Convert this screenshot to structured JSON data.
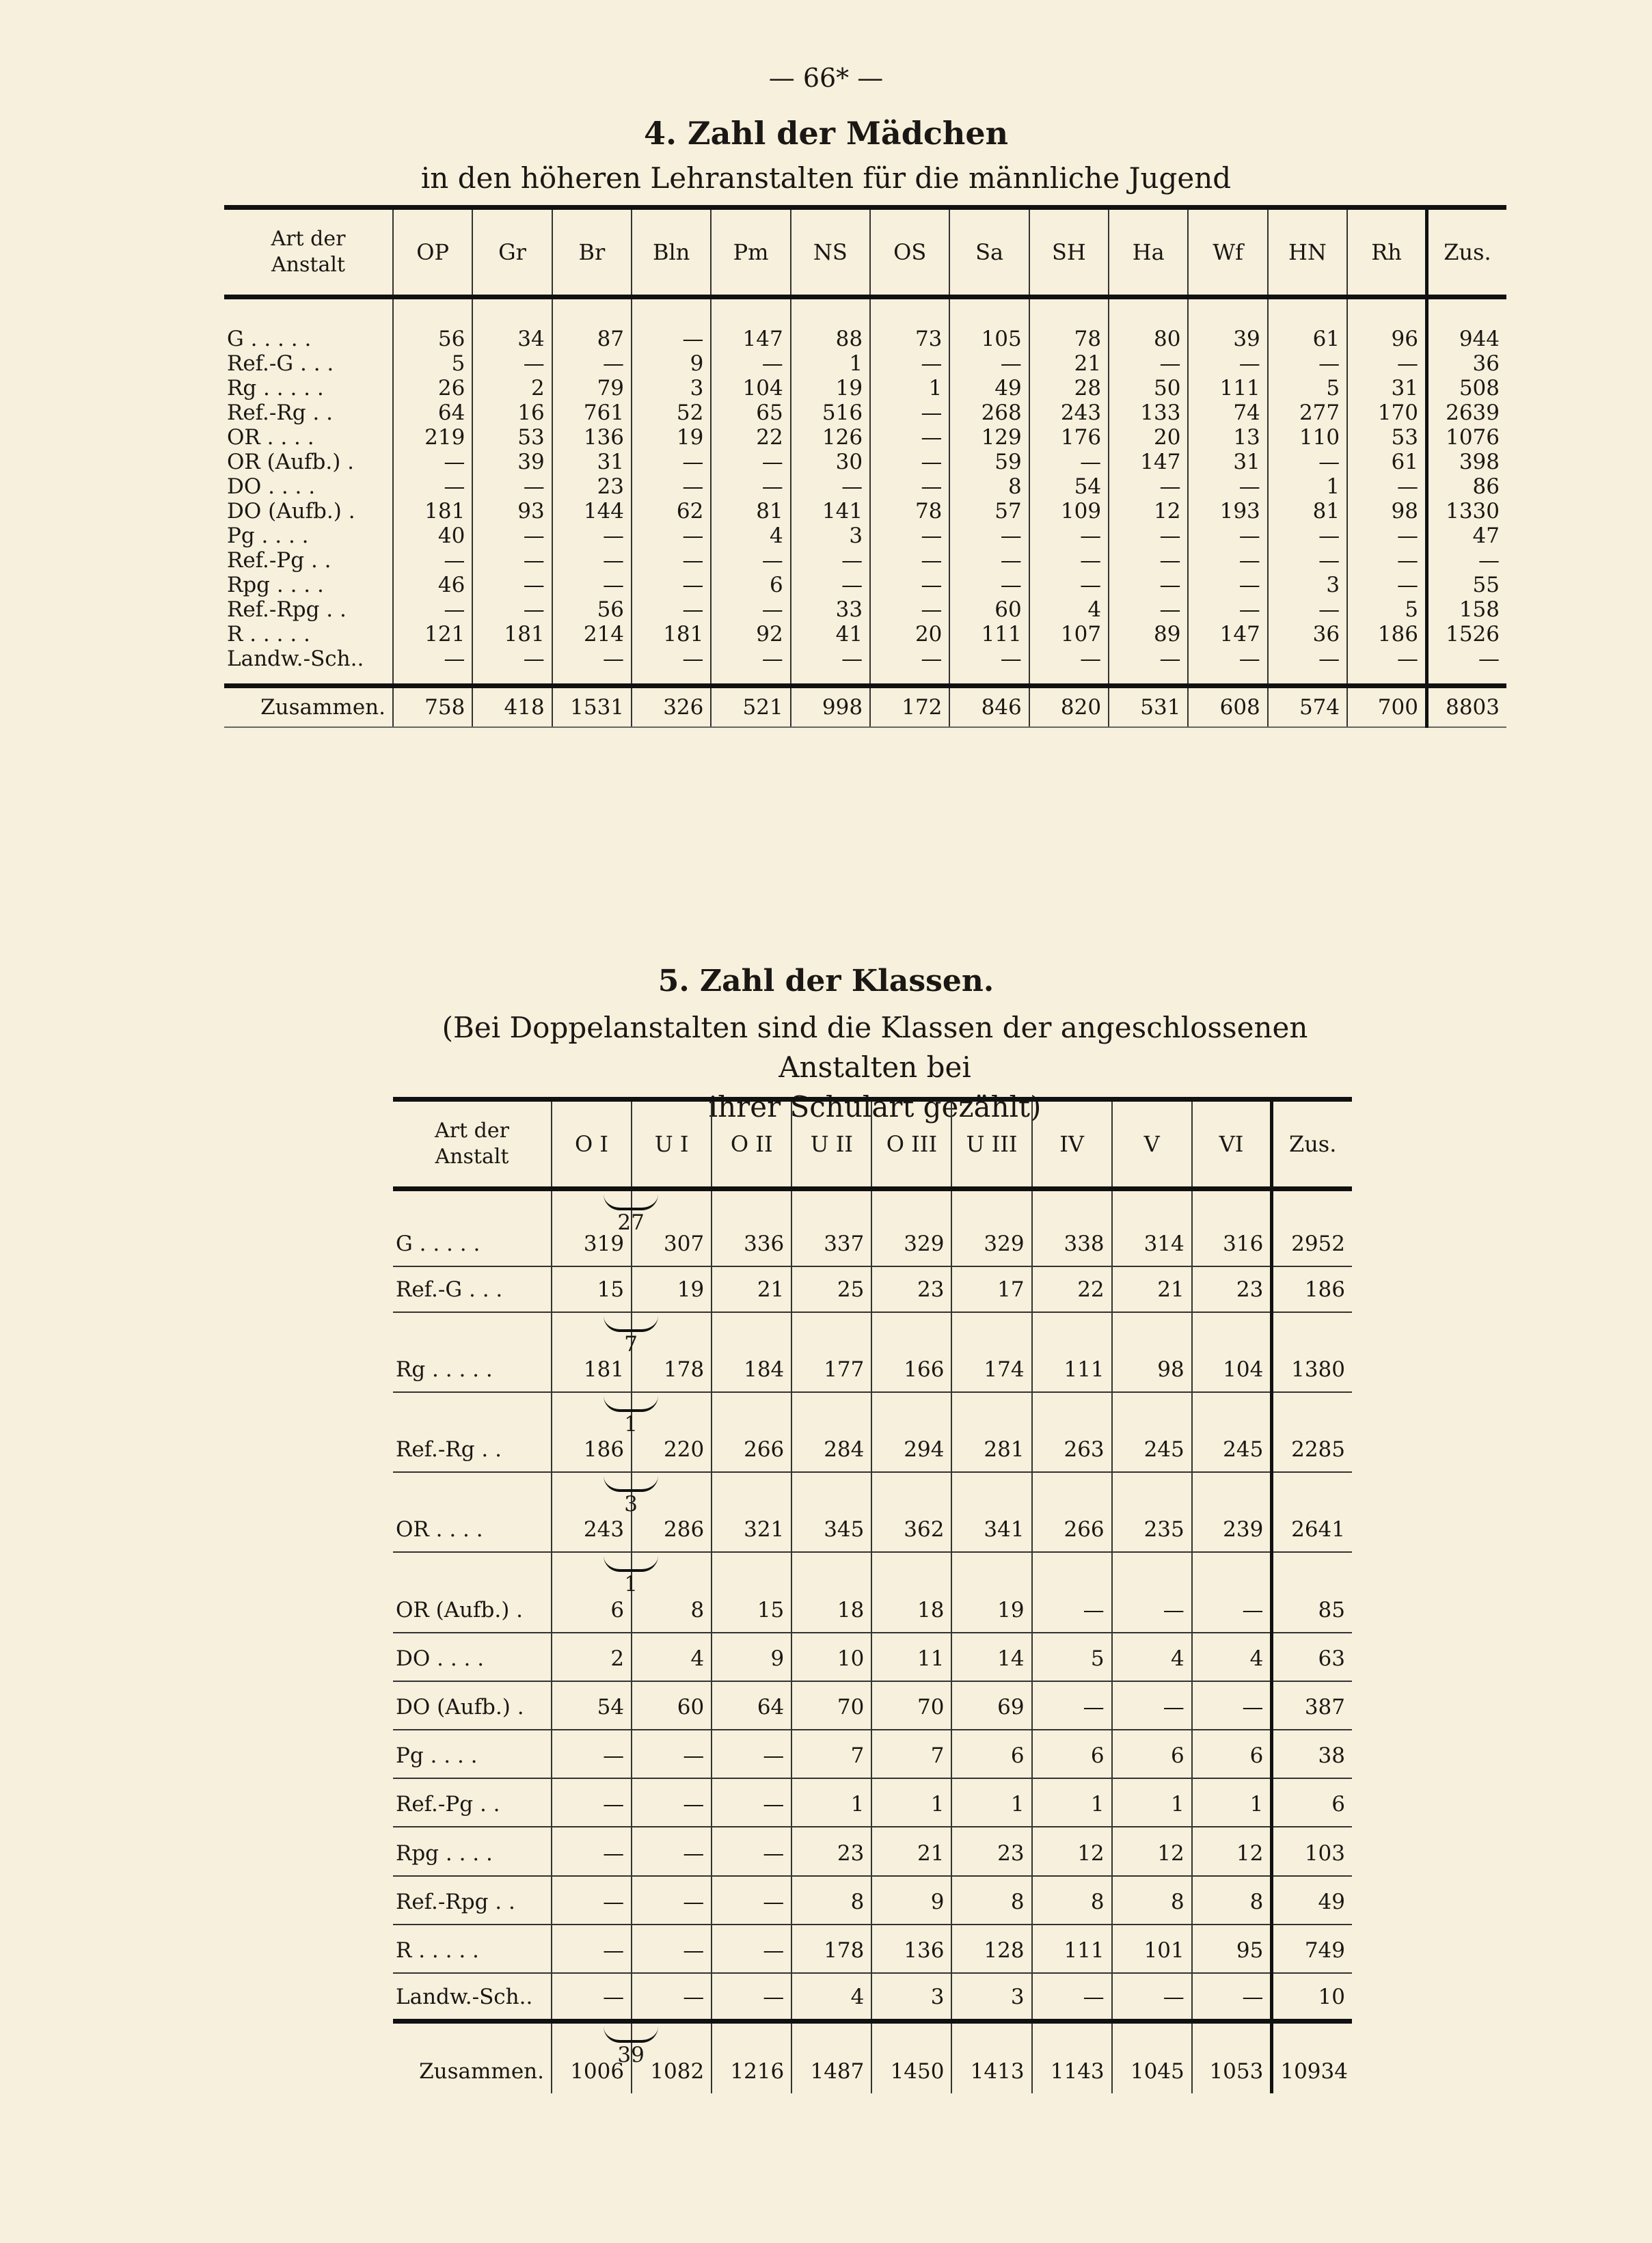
{
  "page_number": "— 66* —",
  "table4": {
    "title": "4. Zahl der Mädchen",
    "subtitle": "in den höheren Lehranstalten für die männliche Jugend",
    "row_header": [
      "Art der",
      "Anstalt"
    ],
    "columns": [
      "OP",
      "Gr",
      "Br",
      "Bln",
      "Pm",
      "NS",
      "OS",
      "Sa",
      "SH",
      "Ha",
      "Wf",
      "HN",
      "Rh",
      "Zus."
    ],
    "rows": [
      {
        "label": "G . . . . .",
        "values": [
          "56",
          "34",
          "87",
          "—",
          "147",
          "88",
          "73",
          "105",
          "78",
          "80",
          "39",
          "61",
          "96",
          "944"
        ]
      },
      {
        "label": "Ref.-G . . .",
        "values": [
          "5",
          "—",
          "—",
          "9",
          "—",
          "1",
          "—",
          "—",
          "21",
          "—",
          "—",
          "—",
          "—",
          "36"
        ]
      },
      {
        "label": "Rg . . . . .",
        "values": [
          "26",
          "2",
          "79",
          "3",
          "104",
          "19",
          "1",
          "49",
          "28",
          "50",
          "111",
          "5",
          "31",
          "508"
        ]
      },
      {
        "label": "Ref.-Rg  . .",
        "values": [
          "64",
          "16",
          "761",
          "52",
          "65",
          "516",
          "—",
          "268",
          "243",
          "133",
          "74",
          "277",
          "170",
          "2639"
        ]
      },
      {
        "label": "OR  . . . .",
        "values": [
          "219",
          "53",
          "136",
          "19",
          "22",
          "126",
          "—",
          "129",
          "176",
          "20",
          "13",
          "110",
          "53",
          "1076"
        ]
      },
      {
        "label": "OR (Aufb.) .",
        "values": [
          "—",
          "39",
          "31",
          "—",
          "—",
          "30",
          "—",
          "59",
          "—",
          "147",
          "31",
          "—",
          "61",
          "398"
        ]
      },
      {
        "label": "DO  . . . .",
        "values": [
          "—",
          "—",
          "23",
          "—",
          "—",
          "—",
          "—",
          "8",
          "54",
          "—",
          "—",
          "1",
          "—",
          "86"
        ]
      },
      {
        "label": "DO (Aufb.) .",
        "values": [
          "181",
          "93",
          "144",
          "62",
          "81",
          "141",
          "78",
          "57",
          "109",
          "12",
          "193",
          "81",
          "98",
          "1330"
        ]
      },
      {
        "label": "Pg  . . . .",
        "values": [
          "40",
          "—",
          "—",
          "—",
          "4",
          "3",
          "—",
          "—",
          "—",
          "—",
          "—",
          "—",
          "—",
          "47"
        ]
      },
      {
        "label": "Ref.-Pg  . .",
        "values": [
          "—",
          "—",
          "—",
          "—",
          "—",
          "—",
          "—",
          "—",
          "—",
          "—",
          "—",
          "—",
          "—",
          "—"
        ]
      },
      {
        "label": "Rpg . . . .",
        "values": [
          "46",
          "—",
          "—",
          "—",
          "6",
          "—",
          "—",
          "—",
          "—",
          "—",
          "—",
          "3",
          "—",
          "55"
        ]
      },
      {
        "label": "Ref.-Rpg . .",
        "values": [
          "—",
          "—",
          "56",
          "—",
          "—",
          "33",
          "—",
          "60",
          "4",
          "—",
          "—",
          "—",
          "5",
          "158"
        ]
      },
      {
        "label": "R . . . . .",
        "values": [
          "121",
          "181",
          "214",
          "181",
          "92",
          "41",
          "20",
          "111",
          "107",
          "89",
          "147",
          "36",
          "186",
          "1526"
        ]
      },
      {
        "label": "Landw.-Sch..",
        "values": [
          "—",
          "—",
          "—",
          "—",
          "—",
          "—",
          "—",
          "—",
          "—",
          "—",
          "—",
          "—",
          "—",
          "—"
        ]
      }
    ],
    "total": {
      "label": "Zusammen.",
      "values": [
        "758",
        "418",
        "1531",
        "326",
        "521",
        "998",
        "172",
        "846",
        "820",
        "531",
        "608",
        "574",
        "700",
        "8803"
      ]
    }
  },
  "table5": {
    "title": "5. Zahl der Klassen.",
    "subtitle_line1": "(Bei Doppelanstalten sind die Klassen der angeschlossenen Anstalten bei",
    "subtitle_line2": "ihrer Schulart gezählt)",
    "row_header": [
      "Art der",
      "Anstalt"
    ],
    "columns": [
      "O I",
      "U I",
      "O II",
      "U II",
      "O III",
      "U III",
      "IV",
      "V",
      "VI",
      "Zus."
    ],
    "rows": [
      {
        "label": "G . . . . .",
        "bracket": "27",
        "values": [
          "319",
          "307",
          "336",
          "337",
          "329",
          "329",
          "338",
          "314",
          "316",
          "2952"
        ]
      },
      {
        "label": "Ref.-G . . .",
        "bracket": null,
        "values": [
          "15",
          "19",
          "21",
          "25",
          "23",
          "17",
          "22",
          "21",
          "23",
          "186"
        ]
      },
      {
        "label": "Rg . . . . .",
        "bracket": "7",
        "values": [
          "181",
          "178",
          "184",
          "177",
          "166",
          "174",
          "111",
          "98",
          "104",
          "1380"
        ]
      },
      {
        "label": "Ref.-Rg  . .",
        "bracket": "1",
        "values": [
          "186",
          "220",
          "266",
          "284",
          "294",
          "281",
          "263",
          "245",
          "245",
          "2285"
        ]
      },
      {
        "label": "OR  . . . .",
        "bracket": "3",
        "values": [
          "243",
          "286",
          "321",
          "345",
          "362",
          "341",
          "266",
          "235",
          "239",
          "2641"
        ]
      },
      {
        "label": "OR (Aufb.) .",
        "bracket": "1",
        "values": [
          "6",
          "8",
          "15",
          "18",
          "18",
          "19",
          "—",
          "—",
          "—",
          "85"
        ]
      },
      {
        "label": "DO  . . . .",
        "bracket": null,
        "values": [
          "2",
          "4",
          "9",
          "10",
          "11",
          "14",
          "5",
          "4",
          "4",
          "63"
        ]
      },
      {
        "label": "DO (Aufb.) .",
        "bracket": null,
        "values": [
          "54",
          "60",
          "64",
          "70",
          "70",
          "69",
          "—",
          "—",
          "—",
          "387"
        ]
      },
      {
        "label": "Pg  . . . .",
        "bracket": null,
        "values": [
          "—",
          "—",
          "—",
          "7",
          "7",
          "6",
          "6",
          "6",
          "6",
          "38"
        ]
      },
      {
        "label": "Ref.-Pg  . .",
        "bracket": null,
        "values": [
          "—",
          "—",
          "—",
          "1",
          "1",
          "1",
          "1",
          "1",
          "1",
          "6"
        ]
      },
      {
        "label": "Rpg . . . .",
        "bracket": null,
        "values": [
          "—",
          "—",
          "—",
          "23",
          "21",
          "23",
          "12",
          "12",
          "12",
          "103"
        ]
      },
      {
        "label": "Ref.-Rpg . .",
        "bracket": null,
        "values": [
          "—",
          "—",
          "—",
          "8",
          "9",
          "8",
          "8",
          "8",
          "8",
          "49"
        ]
      },
      {
        "label": "R . . . . .",
        "bracket": null,
        "values": [
          "—",
          "—",
          "—",
          "178",
          "136",
          "128",
          "111",
          "101",
          "95",
          "749"
        ]
      },
      {
        "label": "Landw.-Sch..",
        "bracket": null,
        "values": [
          "—",
          "—",
          "—",
          "4",
          "3",
          "3",
          "—",
          "—",
          "—",
          "10"
        ]
      }
    ],
    "total": {
      "label": "Zusammen.",
      "bracket": "39",
      "values": [
        "1006",
        "1082",
        "1216",
        "1487",
        "1450",
        "1413",
        "1143",
        "1045",
        "1053",
        "10934"
      ]
    }
  }
}
